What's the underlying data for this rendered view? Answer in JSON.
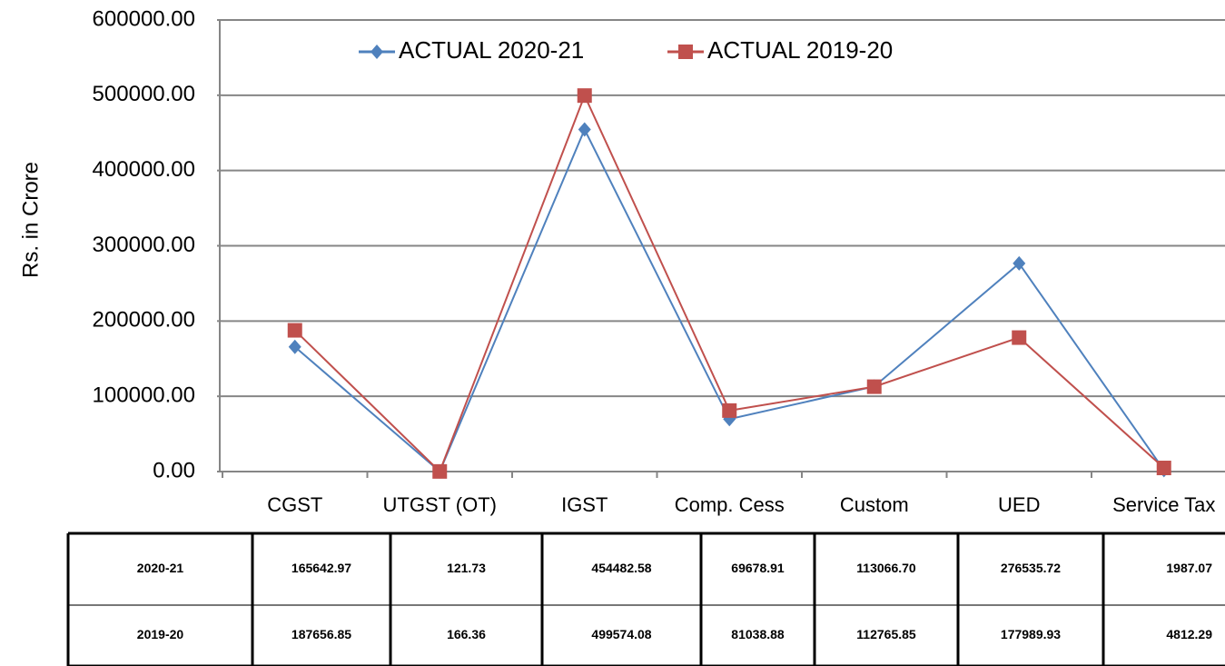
{
  "chart_data": {
    "type": "line",
    "y_label": "Rs. in Crore",
    "categories": [
      "CGST",
      "UTGST (OT)",
      "IGST",
      "Comp. Cess",
      "Custom",
      "UED",
      "Service Tax"
    ],
    "series": [
      {
        "name": "ACTUAL 2020-21",
        "color": "#4f81bd",
        "marker": "diamond",
        "values": [
          165642.97,
          121.73,
          454482.58,
          69678.91,
          113066.7,
          276535.72,
          1987.07
        ],
        "value_labels": [
          "165642.97",
          "121.73",
          "454482.58",
          "69678.91",
          "113066.70",
          "276535.72",
          "1987.07"
        ]
      },
      {
        "name": "ACTUAL 2019-20",
        "color": "#c0504d",
        "marker": "square",
        "values": [
          187656.85,
          166.36,
          499574.08,
          81038.88,
          112765.85,
          177989.93,
          4812.29
        ],
        "value_labels": [
          "187656.85",
          "166.36",
          "499574.08",
          "81038.88",
          "112765.85",
          "177989.93",
          "4812.29"
        ]
      }
    ],
    "ylim": [
      0,
      600000
    ],
    "yticks": [
      {
        "value": 0,
        "label": "0.00"
      },
      {
        "value": 100000,
        "label": "100000.00"
      },
      {
        "value": 200000,
        "label": "200000.00"
      },
      {
        "value": 300000,
        "label": "300000.00"
      },
      {
        "value": 400000,
        "label": "400000.00"
      },
      {
        "value": 500000,
        "label": "500000.00"
      },
      {
        "value": 600000,
        "label": "600000.00"
      }
    ],
    "grid": true,
    "legend": "top",
    "table": {
      "row_labels": [
        "2020-21",
        "2019-20"
      ]
    }
  }
}
